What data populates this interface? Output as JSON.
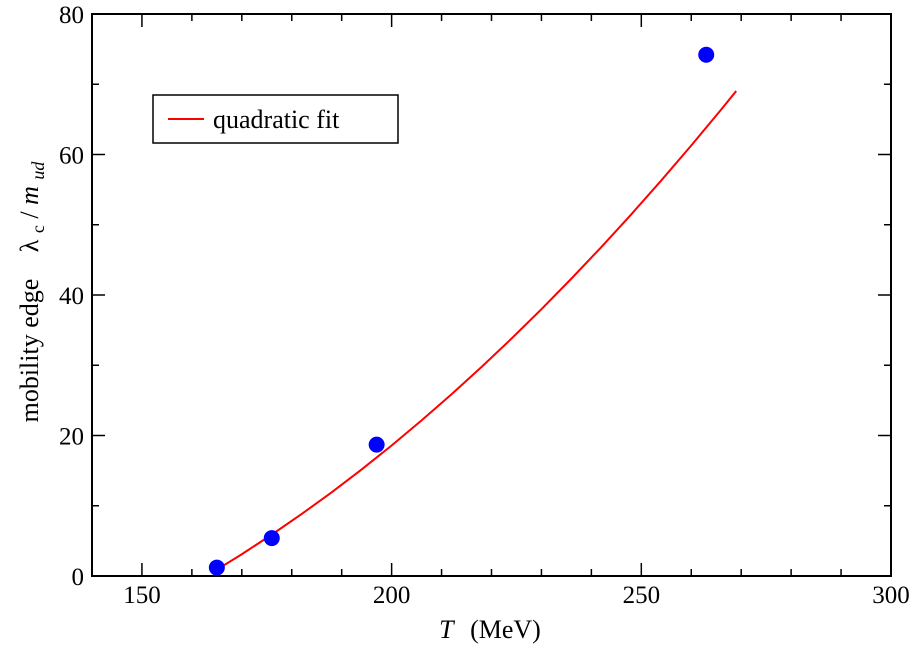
{
  "chart_data": {
    "type": "scatter",
    "xlabel_var": "T",
    "xlabel_unit": "(MeV)",
    "ylabel_text": "mobility edge",
    "ylabel_lambda": "λ",
    "ylabel_lambda_sub": "c",
    "ylabel_slash": "/",
    "ylabel_m": "m",
    "ylabel_m_sub": "ud",
    "xlim": [
      140,
      300
    ],
    "ylim": [
      0,
      80
    ],
    "x_ticks": [
      150,
      200,
      250,
      300
    ],
    "x_tick_labels": [
      "150",
      "200",
      "250",
      "300"
    ],
    "y_ticks": [
      0,
      20,
      40,
      60,
      80
    ],
    "y_tick_labels": [
      "0",
      "20",
      "40",
      "60",
      "80"
    ],
    "x_minor_step": 10,
    "y_minor_step": 10,
    "grid": false,
    "legend_position": "top-left",
    "series": [
      {
        "kind": "points",
        "color": "#0000ff",
        "x": [
          165,
          176,
          197,
          263
        ],
        "y": [
          1.2,
          5.4,
          18.7,
          74.2
        ]
      },
      {
        "kind": "line",
        "name": "quadratic fit",
        "color": "#ff0000",
        "x": [
          164,
          170,
          176,
          182,
          188,
          194,
          200,
          206,
          212,
          218,
          224,
          230,
          236,
          242,
          248,
          254,
          260,
          266,
          269
        ],
        "y": [
          0.47,
          3.1,
          5.89,
          8.83,
          11.92,
          15.17,
          18.58,
          22.15,
          25.87,
          29.75,
          33.79,
          37.98,
          42.33,
          46.83,
          51.49,
          56.31,
          61.28,
          66.41,
          69.03
        ]
      }
    ]
  }
}
